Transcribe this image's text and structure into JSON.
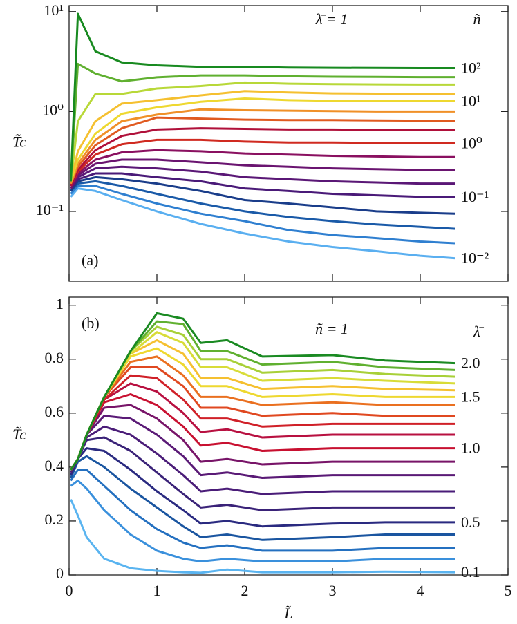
{
  "chart_data": [
    {
      "type": "line",
      "panel_label": "(a)",
      "annotation": "λ̄ = 1",
      "legend_title": "ñ",
      "y_label": "T̃c",
      "log_y": true,
      "xlim": [
        0,
        5
      ],
      "xticks": [
        0,
        1,
        2,
        3,
        4,
        5
      ],
      "ylim": [
        0.02,
        11.5
      ],
      "yticks": [
        {
          "value": 0.1,
          "label": "10⁻¹"
        },
        {
          "value": 1,
          "label": "10⁰"
        },
        {
          "value": 10,
          "label": "10¹"
        }
      ],
      "x": [
        0.02,
        0.1,
        0.3,
        0.6,
        1.0,
        1.5,
        2.0,
        2.5,
        3.0,
        3.5,
        4.0,
        4.4
      ],
      "series": [
        {
          "name": "10⁻²",
          "color": "#5aaff0",
          "values": [
            0.14,
            0.17,
            0.16,
            0.13,
            0.1,
            0.075,
            0.06,
            0.05,
            0.044,
            0.04,
            0.036,
            0.034
          ]
        },
        {
          "color": "#2f7fd0",
          "values": [
            0.15,
            0.18,
            0.18,
            0.15,
            0.12,
            0.095,
            0.08,
            0.065,
            0.058,
            0.054,
            0.05,
            0.048
          ]
        },
        {
          "color": "#1a5aa8",
          "values": [
            0.16,
            0.19,
            0.2,
            0.18,
            0.15,
            0.12,
            0.1,
            0.088,
            0.08,
            0.074,
            0.07,
            0.067
          ]
        },
        {
          "color": "#1a3d8a",
          "values": [
            0.16,
            0.2,
            0.22,
            0.21,
            0.19,
            0.16,
            0.13,
            0.12,
            0.11,
            0.1,
            0.097,
            0.095
          ]
        },
        {
          "name": "10⁻¹",
          "color": "#4a1a78",
          "values": [
            0.17,
            0.21,
            0.24,
            0.24,
            0.22,
            0.2,
            0.17,
            0.16,
            0.15,
            0.145,
            0.14,
            0.14
          ]
        },
        {
          "color": "#5a1776",
          "values": [
            0.17,
            0.22,
            0.27,
            0.28,
            0.27,
            0.25,
            0.22,
            0.21,
            0.2,
            0.195,
            0.19,
            0.19
          ]
        },
        {
          "color": "#6a1470",
          "values": [
            0.17,
            0.23,
            0.3,
            0.33,
            0.33,
            0.31,
            0.29,
            0.28,
            0.27,
            0.265,
            0.26,
            0.26
          ]
        },
        {
          "color": "#8a1060",
          "values": [
            0.18,
            0.24,
            0.33,
            0.39,
            0.41,
            0.4,
            0.38,
            0.37,
            0.36,
            0.355,
            0.35,
            0.35
          ]
        },
        {
          "name": "10⁰",
          "color": "#d02a20",
          "values": [
            0.18,
            0.25,
            0.37,
            0.47,
            0.52,
            0.52,
            0.5,
            0.49,
            0.49,
            0.485,
            0.48,
            0.48
          ]
        },
        {
          "color": "#b0103a",
          "values": [
            0.18,
            0.26,
            0.41,
            0.57,
            0.66,
            0.68,
            0.67,
            0.66,
            0.66,
            0.655,
            0.65,
            0.65
          ]
        },
        {
          "color": "#e05a20",
          "values": [
            0.19,
            0.28,
            0.46,
            0.68,
            0.87,
            0.85,
            0.83,
            0.82,
            0.82,
            0.815,
            0.81,
            0.81
          ]
        },
        {
          "color": "#f09028",
          "values": [
            0.19,
            0.3,
            0.52,
            0.8,
            0.93,
            1.05,
            1.03,
            1.02,
            1.01,
            1.0,
            1.0,
            1.0
          ]
        },
        {
          "name": "10¹",
          "color": "#eed830",
          "values": [
            0.2,
            0.33,
            0.6,
            0.95,
            1.1,
            1.25,
            1.35,
            1.3,
            1.28,
            1.27,
            1.27,
            1.27
          ]
        },
        {
          "color": "#f5c030",
          "values": [
            0.2,
            0.4,
            0.8,
            1.2,
            1.3,
            1.45,
            1.6,
            1.55,
            1.52,
            1.51,
            1.51,
            1.51
          ]
        },
        {
          "color": "#b8d838",
          "values": [
            0.2,
            0.8,
            1.5,
            1.5,
            1.7,
            1.8,
            1.95,
            1.9,
            1.88,
            1.87,
            1.86,
            1.86
          ]
        },
        {
          "color": "#60b030",
          "values": [
            0.2,
            3.0,
            2.4,
            2.0,
            2.2,
            2.3,
            2.3,
            2.25,
            2.23,
            2.22,
            2.21,
            2.21
          ]
        },
        {
          "name": "10²",
          "color": "#188a20",
          "values": [
            0.2,
            9.5,
            4.0,
            3.1,
            2.9,
            2.8,
            2.8,
            2.75,
            2.74,
            2.73,
            2.72,
            2.72
          ]
        }
      ]
    },
    {
      "type": "line",
      "panel_label": "(b)",
      "annotation": "ñ = 1",
      "legend_title": "λ̄",
      "y_label": "T̃c",
      "x_label": "L̃",
      "log_y": false,
      "xlim": [
        0,
        5
      ],
      "xticks": [
        0,
        1,
        2,
        3,
        4,
        5
      ],
      "ylim": [
        0,
        1.03
      ],
      "yticks": [
        0,
        0.2,
        0.4,
        0.6,
        0.8,
        1
      ],
      "x": [
        0.02,
        0.1,
        0.2,
        0.4,
        0.7,
        1.0,
        1.3,
        1.5,
        1.8,
        2.2,
        3.0,
        3.6,
        4.4
      ],
      "series": [
        {
          "name": "0.1",
          "color": "#5ab4f0",
          "values": [
            0.28,
            0.22,
            0.14,
            0.06,
            0.025,
            0.015,
            0.01,
            0.008,
            0.02,
            0.01,
            0.01,
            0.012,
            0.01
          ]
        },
        {
          "color": "#3a90dc",
          "values": [
            0.33,
            0.35,
            0.32,
            0.24,
            0.15,
            0.09,
            0.06,
            0.05,
            0.06,
            0.05,
            0.05,
            0.06,
            0.06
          ]
        },
        {
          "color": "#2470c0",
          "values": [
            0.35,
            0.39,
            0.39,
            0.33,
            0.24,
            0.17,
            0.12,
            0.1,
            0.11,
            0.09,
            0.09,
            0.1,
            0.1
          ]
        },
        {
          "color": "#1a55a0",
          "values": [
            0.36,
            0.42,
            0.44,
            0.4,
            0.32,
            0.25,
            0.18,
            0.14,
            0.15,
            0.13,
            0.14,
            0.15,
            0.15
          ]
        },
        {
          "name": "0.5",
          "color": "#2a2a80",
          "values": [
            0.37,
            0.43,
            0.47,
            0.46,
            0.39,
            0.31,
            0.24,
            0.19,
            0.2,
            0.18,
            0.19,
            0.195,
            0.195
          ]
        },
        {
          "color": "#3a2278",
          "values": [
            0.38,
            0.43,
            0.5,
            0.51,
            0.46,
            0.38,
            0.3,
            0.25,
            0.26,
            0.24,
            0.25,
            0.25,
            0.25
          ]
        },
        {
          "color": "#4a1c78",
          "values": [
            0.38,
            0.43,
            0.51,
            0.55,
            0.52,
            0.45,
            0.37,
            0.31,
            0.32,
            0.3,
            0.31,
            0.31,
            0.31
          ]
        },
        {
          "color": "#5a1a76",
          "values": [
            0.39,
            0.43,
            0.52,
            0.59,
            0.58,
            0.52,
            0.44,
            0.37,
            0.38,
            0.36,
            0.37,
            0.37,
            0.37
          ]
        },
        {
          "color": "#781468",
          "values": [
            0.39,
            0.43,
            0.52,
            0.62,
            0.63,
            0.58,
            0.5,
            0.42,
            0.43,
            0.41,
            0.42,
            0.42,
            0.42
          ]
        },
        {
          "name": "1.0",
          "color": "#c81030",
          "values": [
            0.39,
            0.43,
            0.52,
            0.64,
            0.67,
            0.63,
            0.55,
            0.48,
            0.49,
            0.46,
            0.47,
            0.47,
            0.47
          ]
        },
        {
          "color": "#b81040",
          "values": [
            0.39,
            0.43,
            0.52,
            0.65,
            0.71,
            0.68,
            0.6,
            0.53,
            0.54,
            0.51,
            0.52,
            0.52,
            0.52
          ]
        },
        {
          "color": "#d02028",
          "values": [
            0.39,
            0.43,
            0.52,
            0.65,
            0.74,
            0.73,
            0.65,
            0.58,
            0.58,
            0.55,
            0.56,
            0.56,
            0.56
          ]
        },
        {
          "color": "#e04820",
          "values": [
            0.39,
            0.43,
            0.52,
            0.66,
            0.77,
            0.77,
            0.7,
            0.62,
            0.62,
            0.59,
            0.6,
            0.59,
            0.59
          ]
        },
        {
          "color": "#ea7020",
          "values": [
            0.39,
            0.43,
            0.52,
            0.66,
            0.79,
            0.81,
            0.74,
            0.66,
            0.66,
            0.63,
            0.64,
            0.63,
            0.63
          ]
        },
        {
          "name": "1.5",
          "color": "#eed830",
          "values": [
            0.39,
            0.43,
            0.52,
            0.66,
            0.81,
            0.84,
            0.78,
            0.7,
            0.7,
            0.66,
            0.67,
            0.66,
            0.66
          ]
        },
        {
          "color": "#f5c030",
          "values": [
            0.39,
            0.43,
            0.52,
            0.66,
            0.82,
            0.87,
            0.82,
            0.73,
            0.73,
            0.69,
            0.7,
            0.69,
            0.685
          ]
        },
        {
          "color": "#d8dc38",
          "values": [
            0.39,
            0.43,
            0.52,
            0.66,
            0.82,
            0.9,
            0.86,
            0.77,
            0.77,
            0.72,
            0.73,
            0.72,
            0.71
          ]
        },
        {
          "color": "#a8d038",
          "values": [
            0.39,
            0.43,
            0.52,
            0.66,
            0.83,
            0.92,
            0.89,
            0.8,
            0.8,
            0.75,
            0.76,
            0.745,
            0.735
          ]
        },
        {
          "color": "#60b030",
          "values": [
            0.39,
            0.43,
            0.52,
            0.66,
            0.83,
            0.94,
            0.93,
            0.83,
            0.83,
            0.78,
            0.79,
            0.77,
            0.76
          ]
        },
        {
          "name": "2.0",
          "color": "#1a8a22",
          "values": [
            0.39,
            0.43,
            0.52,
            0.66,
            0.83,
            0.97,
            0.95,
            0.86,
            0.87,
            0.81,
            0.815,
            0.795,
            0.785
          ]
        }
      ]
    }
  ]
}
